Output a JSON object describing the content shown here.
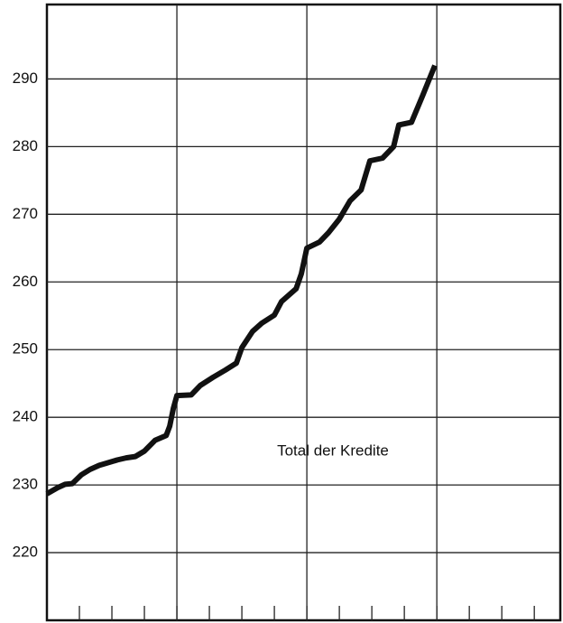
{
  "chart_data": {
    "type": "line",
    "annotation": "Total der Kredite",
    "x": [
      0,
      0.33,
      0.56,
      0.78,
      1.06,
      1.33,
      1.61,
      1.89,
      2.17,
      2.44,
      2.72,
      3.0,
      3.33,
      3.67,
      3.78,
      3.89,
      4.0,
      4.44,
      4.72,
      5.11,
      5.5,
      5.83,
      6.0,
      6.33,
      6.61,
      7.0,
      7.22,
      7.67,
      7.83,
      8.0,
      8.39,
      8.67,
      9.0,
      9.33,
      9.67,
      9.94,
      10.33,
      10.67,
      10.83,
      11.22,
      11.56,
      11.94
    ],
    "series": [
      {
        "name": null,
        "color": "#111111",
        "values": [
          228.7,
          229.6,
          230.1,
          230.2,
          231.5,
          232.3,
          232.9,
          233.3,
          233.7,
          234.0,
          234.2,
          235.0,
          236.6,
          237.3,
          238.7,
          241.3,
          243.2,
          243.3,
          244.7,
          245.9,
          247.0,
          248.0,
          250.3,
          252.7,
          253.9,
          255.1,
          257.1,
          259.0,
          261.2,
          265.0,
          265.9,
          267.3,
          269.3,
          272.0,
          273.6,
          277.9,
          278.3,
          280.0,
          283.2,
          283.6,
          287.5,
          292.0
        ]
      }
    ],
    "xlim": [
      0,
      15.8
    ],
    "xticks": [
      1,
      2,
      3,
      4,
      5,
      6,
      7,
      8,
      9,
      10,
      11,
      12,
      13,
      14,
      15
    ],
    "xmajor": [
      4,
      8,
      12
    ],
    "ylim": [
      210,
      301
    ],
    "yticks": [
      220,
      230,
      240,
      250,
      260,
      270,
      280,
      290
    ],
    "grid": true
  }
}
